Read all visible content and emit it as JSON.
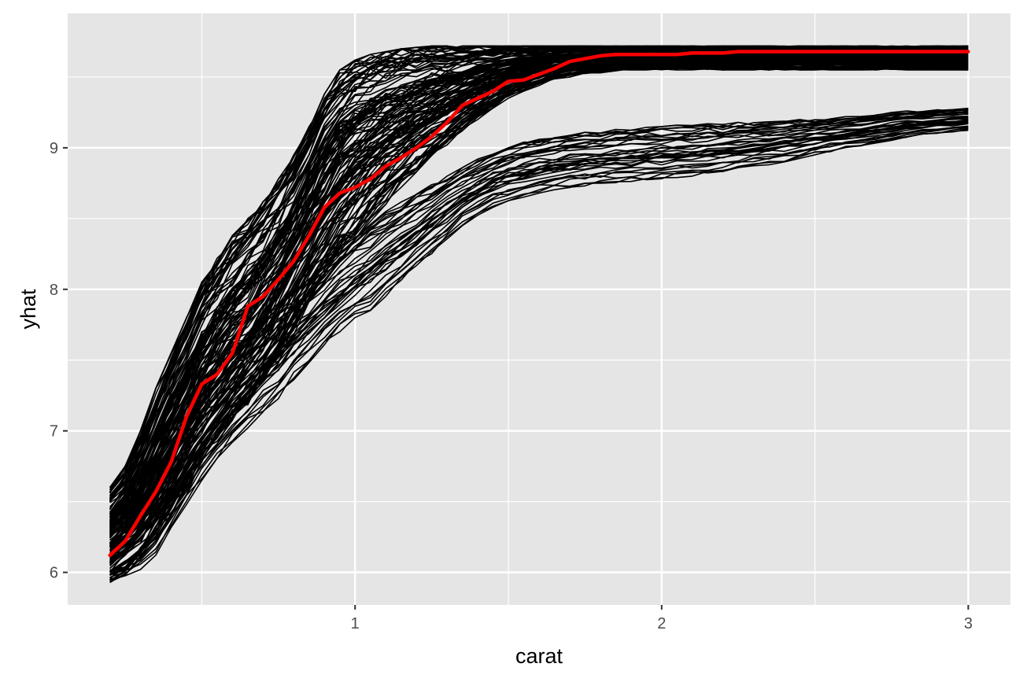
{
  "chart_data": {
    "type": "line",
    "title": "",
    "xlabel": "carat",
    "ylabel": "yhat",
    "xlim": [
      0.2,
      3.0
    ],
    "ylim": [
      5.9,
      9.72
    ],
    "x_ticks": [
      {
        "value": 1,
        "label": "1"
      },
      {
        "value": 2,
        "label": "2"
      },
      {
        "value": 3,
        "label": "3"
      }
    ],
    "x_minor_ticks": [
      0.5,
      1.5,
      2.5
    ],
    "y_ticks": [
      {
        "value": 6,
        "label": "6"
      },
      {
        "value": 7,
        "label": "7"
      },
      {
        "value": 8,
        "label": "8"
      },
      {
        "value": 9,
        "label": "9"
      }
    ],
    "y_minor_ticks": [
      6.5,
      7.5,
      8.5,
      9.5
    ],
    "grid": true,
    "legend": "none",
    "background_color": "#e5e5e5",
    "grid_color": "#ffffff",
    "ice_line_color": "#000000",
    "average_line_color": "#ff0000",
    "x": [
      0.2,
      0.25,
      0.3,
      0.35,
      0.4,
      0.45,
      0.5,
      0.55,
      0.6,
      0.65,
      0.7,
      0.75,
      0.8,
      0.85,
      0.9,
      0.95,
      1.0,
      1.05,
      1.1,
      1.15,
      1.2,
      1.25,
      1.3,
      1.35,
      1.4,
      1.45,
      1.5,
      1.55,
      1.6,
      1.65,
      1.7,
      1.75,
      1.8,
      1.85,
      1.9,
      1.95,
      2.0,
      2.05,
      2.1,
      2.15,
      2.2,
      2.25,
      2.3,
      2.35,
      2.4,
      2.45,
      2.5,
      2.55,
      2.6,
      2.65,
      2.7,
      2.75,
      2.8,
      2.85,
      2.9,
      2.95,
      3.0
    ],
    "average_series": {
      "values": [
        6.12,
        6.22,
        6.4,
        6.57,
        6.78,
        7.1,
        7.33,
        7.4,
        7.55,
        7.88,
        7.95,
        8.07,
        8.2,
        8.38,
        8.58,
        8.68,
        8.72,
        8.78,
        8.87,
        8.93,
        9.0,
        9.08,
        9.18,
        9.3,
        9.35,
        9.4,
        9.47,
        9.48,
        9.52,
        9.56,
        9.61,
        9.63,
        9.65,
        9.66,
        9.66,
        9.66,
        9.66,
        9.66,
        9.67,
        9.67,
        9.67,
        9.68,
        9.68,
        9.68,
        9.68,
        9.68,
        9.68,
        9.68,
        9.68,
        9.68,
        9.68,
        9.68,
        9.68,
        9.68,
        9.68,
        9.68,
        9.68
      ]
    },
    "ice_bands": [
      {
        "count": 130,
        "low": [
          5.92,
          5.98,
          6.08,
          6.22,
          6.38,
          6.55,
          6.75,
          6.88,
          7.02,
          7.15,
          7.3,
          7.48,
          7.68,
          7.88,
          8.05,
          8.2,
          8.35,
          8.48,
          8.6,
          8.72,
          8.82,
          8.92,
          9.02,
          9.12,
          9.2,
          9.28,
          9.35,
          9.4,
          9.44,
          9.48,
          9.5,
          9.52,
          9.53,
          9.54,
          9.55,
          9.55,
          9.55,
          9.55,
          9.55,
          9.55,
          9.55,
          9.55,
          9.55,
          9.55,
          9.55,
          9.55,
          9.55,
          9.55,
          9.55,
          9.55,
          9.55,
          9.55,
          9.55,
          9.55,
          9.55,
          9.55,
          9.55
        ],
        "high": [
          6.6,
          6.75,
          7.0,
          7.3,
          7.55,
          7.8,
          8.05,
          8.22,
          8.38,
          8.5,
          8.62,
          8.78,
          8.95,
          9.15,
          9.38,
          9.55,
          9.62,
          9.66,
          9.68,
          9.7,
          9.71,
          9.72,
          9.72,
          9.72,
          9.72,
          9.72,
          9.72,
          9.72,
          9.72,
          9.72,
          9.72,
          9.72,
          9.72,
          9.72,
          9.72,
          9.72,
          9.72,
          9.72,
          9.72,
          9.72,
          9.72,
          9.72,
          9.72,
          9.72,
          9.72,
          9.72,
          9.72,
          9.72,
          9.72,
          9.72,
          9.72,
          9.72,
          9.72,
          9.72,
          9.72,
          9.72,
          9.72
        ]
      },
      {
        "count": 35,
        "low": [
          5.92,
          5.96,
          6.02,
          6.12,
          6.28,
          6.48,
          6.65,
          6.8,
          6.92,
          7.02,
          7.12,
          7.22,
          7.35,
          7.48,
          7.6,
          7.7,
          7.78,
          7.85,
          7.95,
          8.05,
          8.15,
          8.25,
          8.35,
          8.45,
          8.52,
          8.58,
          8.62,
          8.65,
          8.68,
          8.7,
          8.72,
          8.73,
          8.74,
          8.75,
          8.76,
          8.77,
          8.78,
          8.79,
          8.8,
          8.81,
          8.82,
          8.84,
          8.86,
          8.88,
          8.9,
          8.92,
          8.95,
          8.97,
          8.99,
          9.01,
          9.03,
          9.05,
          9.07,
          9.09,
          9.1,
          9.11,
          9.12
        ],
        "high": [
          6.35,
          6.45,
          6.62,
          6.8,
          6.98,
          7.12,
          7.28,
          7.42,
          7.55,
          7.68,
          7.8,
          7.9,
          8.0,
          8.1,
          8.2,
          8.3,
          8.4,
          8.48,
          8.55,
          8.62,
          8.68,
          8.74,
          8.8,
          8.86,
          8.92,
          8.97,
          9.01,
          9.04,
          9.06,
          9.08,
          9.1,
          9.11,
          9.12,
          9.13,
          9.14,
          9.15,
          9.15,
          9.16,
          9.16,
          9.17,
          9.17,
          9.18,
          9.18,
          9.19,
          9.19,
          9.2,
          9.2,
          9.21,
          9.22,
          9.23,
          9.24,
          9.25,
          9.26,
          9.26,
          9.27,
          9.27,
          9.28
        ]
      }
    ]
  }
}
